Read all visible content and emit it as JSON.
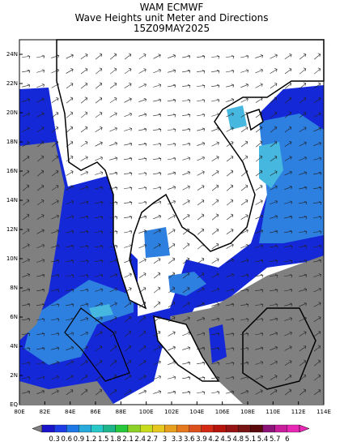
{
  "header": {
    "lines": [
      "WAM ECMWF",
      "Wave Heights unit Meter and Directions",
      "15Z09MAY2025"
    ]
  },
  "map": {
    "lat_labels": [
      "24N",
      "22N",
      "20N",
      "18N",
      "16N",
      "14N",
      "12N",
      "10N",
      "8N",
      "6N",
      "4N",
      "2N",
      "EQ"
    ],
    "lon_labels": [
      "80E",
      "82E",
      "84E",
      "86E",
      "88E",
      "100E",
      "102E",
      "104E",
      "106E",
      "108E",
      "110E",
      "112E",
      "114E"
    ]
  },
  "colorbar": {
    "labels": [
      "0.3",
      "0.6",
      "0.9",
      "1.2",
      "1.5",
      "1.8",
      "2.1",
      "2.4",
      "2.7",
      "3",
      "3.3",
      "3.6",
      "3.9",
      "4.2",
      "4.5",
      "4.8",
      "5.1",
      "5.4",
      "5.7",
      "6"
    ]
  }
}
